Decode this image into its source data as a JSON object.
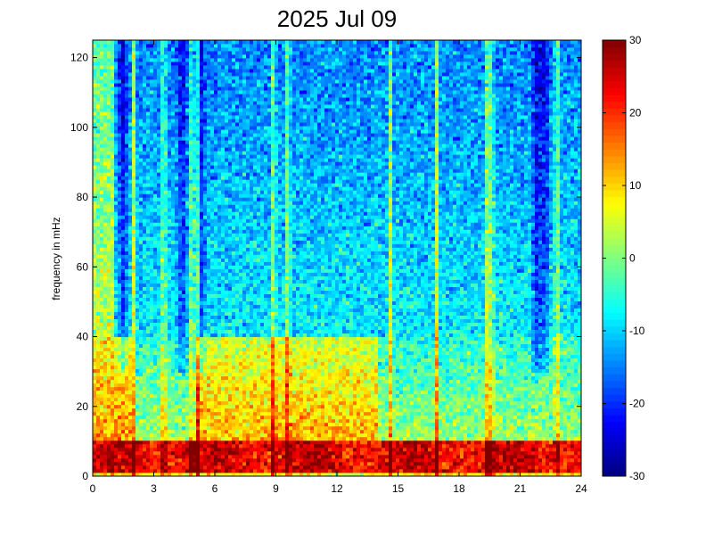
{
  "chart_data": {
    "type": "heatmap",
    "title": "2025 Jul 09",
    "xlabel": "",
    "ylabel": "frequency in mHz",
    "xlim": [
      0,
      24
    ],
    "ylim": [
      0,
      125
    ],
    "x_ticks": [
      "0",
      "3",
      "6",
      "9",
      "12",
      "15",
      "18",
      "21",
      "24"
    ],
    "y_ticks": [
      "0",
      "20",
      "40",
      "60",
      "80",
      "100",
      "120"
    ],
    "colorbar": {
      "colormap": "jet",
      "range": [
        -30,
        30
      ],
      "ticks": [
        "-30",
        "-20",
        "-10",
        "0",
        "10",
        "20",
        "30"
      ]
    },
    "grid": false,
    "bright_vertical_streaks_hours": [
      2.0,
      3.5,
      4.9,
      5.2,
      8.9,
      9.6,
      14.6,
      16.9,
      19.4,
      19.6,
      22.8
    ],
    "dark_vertical_bands_hours": [
      1.5,
      4.4,
      5.3,
      21.8,
      22.2
    ],
    "description_bands": [
      {
        "freq_range_mHz": [
          0,
          10
        ],
        "level_dB": 25
      },
      {
        "freq_range_mHz": [
          10,
          40
        ],
        "level_dB": 12
      },
      {
        "freq_range_mHz": [
          40,
          125
        ],
        "level_dB": -12
      }
    ]
  }
}
